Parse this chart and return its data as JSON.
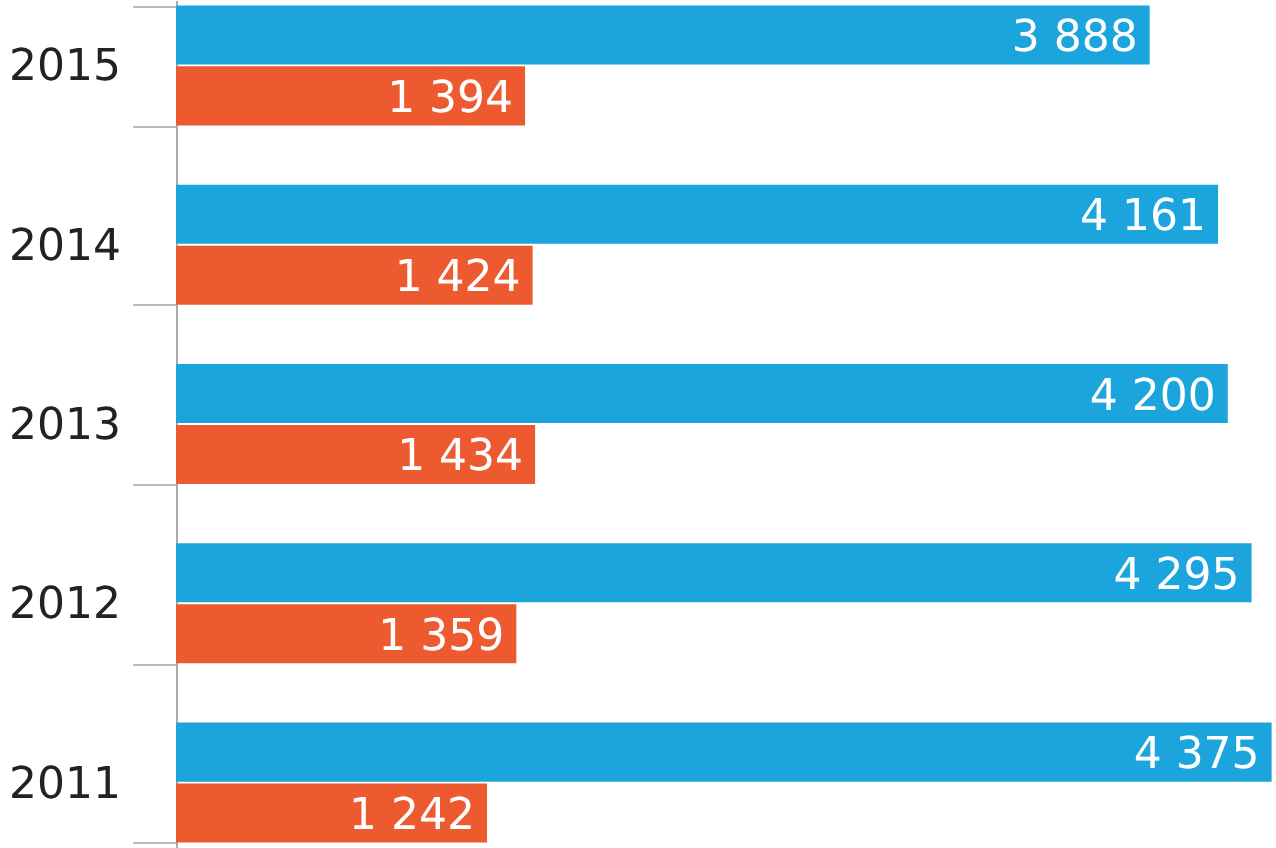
{
  "chart_data": {
    "type": "bar",
    "orientation": "horizontal",
    "categories": [
      "2015",
      "2014",
      "2013",
      "2012",
      "2011"
    ],
    "series": [
      {
        "color": "#1ba5dc",
        "values": [
          3888,
          4161,
          4200,
          4295,
          4375
        ],
        "value_labels": [
          "3 888",
          "4 161",
          "4 200",
          "4 295",
          "4 375"
        ]
      },
      {
        "color": "#ee5a2f",
        "values": [
          1394,
          1424,
          1434,
          1359,
          1242
        ],
        "value_labels": [
          "1 394",
          "1 424",
          "1 434",
          "1 359",
          "1 242"
        ]
      }
    ]
  }
}
